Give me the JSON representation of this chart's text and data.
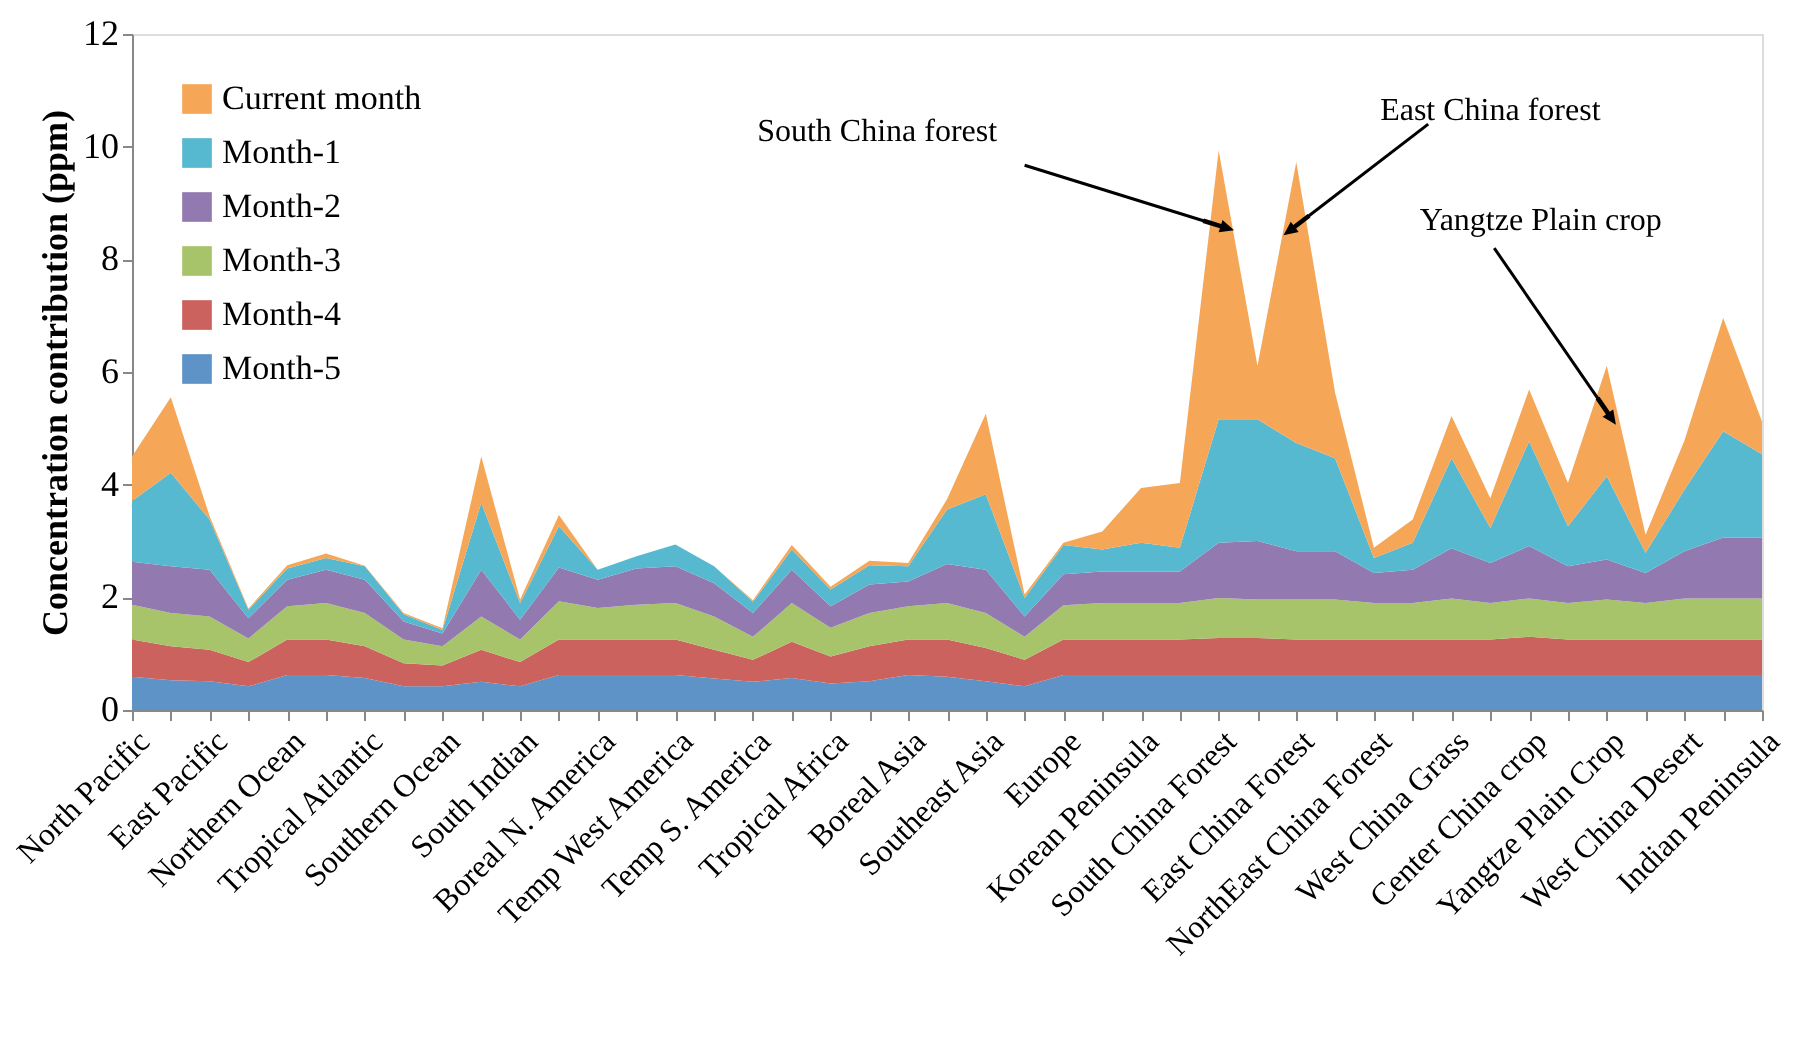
{
  "chart_data": {
    "type": "area",
    "stacked": true,
    "ylabel": "Concentration contribution (ppm)",
    "categories": [
      "North Pacific",
      null,
      "East Pacific",
      null,
      "Northern Ocean",
      null,
      "Tropical Atlantic",
      null,
      "Southern Ocean",
      null,
      "South Indian",
      null,
      "Boreal N. America",
      null,
      "Temp West America",
      null,
      "Temp S. America",
      null,
      "Tropical Africa",
      null,
      "Boreal Asia",
      null,
      "Southeast Asia",
      null,
      "Europe",
      null,
      "Korean Peninsula",
      null,
      "South China Forest",
      null,
      "East China Forest",
      null,
      "NorthEast China Forest",
      null,
      "West China Grass",
      null,
      "Center China crop",
      null,
      "Yangtze Plain Crop",
      null,
      "West China Desert",
      null,
      "Indian Peninsula"
    ],
    "ylim": [
      0,
      12
    ],
    "yticks": [
      0,
      2,
      4,
      6,
      8,
      10,
      12
    ],
    "grid": false,
    "legend": "top left",
    "series": [
      {
        "name": "Month-5",
        "color": "#5e93c8",
        "values": [
          0.59,
          0.53,
          0.51,
          0.42,
          0.62,
          0.62,
          0.57,
          0.42,
          0.42,
          0.5,
          0.42,
          0.62,
          0.62,
          0.62,
          0.62,
          0.56,
          0.5,
          0.57,
          0.47,
          0.51,
          0.62,
          0.59,
          0.51,
          0.42,
          0.62,
          0.62,
          0.62,
          0.62,
          0.62,
          0.62,
          0.62,
          0.62,
          0.62,
          0.62,
          0.62,
          0.62,
          0.62,
          0.62,
          0.62,
          0.62,
          0.62,
          0.62,
          0.62
        ]
      },
      {
        "name": "Month-4",
        "color": "#cc625e",
        "values": [
          0.66,
          0.6,
          0.56,
          0.43,
          0.63,
          0.63,
          0.56,
          0.41,
          0.37,
          0.57,
          0.43,
          0.63,
          0.63,
          0.63,
          0.63,
          0.51,
          0.39,
          0.64,
          0.48,
          0.62,
          0.63,
          0.66,
          0.59,
          0.47,
          0.63,
          0.63,
          0.63,
          0.63,
          0.66,
          0.66,
          0.63,
          0.63,
          0.63,
          0.63,
          0.63,
          0.63,
          0.68,
          0.63,
          0.63,
          0.63,
          0.63,
          0.63,
          0.63
        ]
      },
      {
        "name": "Month-3",
        "color": "#a8c46b",
        "values": [
          0.62,
          0.59,
          0.59,
          0.42,
          0.59,
          0.65,
          0.59,
          0.42,
          0.34,
          0.59,
          0.4,
          0.68,
          0.56,
          0.62,
          0.65,
          0.59,
          0.41,
          0.69,
          0.51,
          0.59,
          0.59,
          0.65,
          0.62,
          0.41,
          0.61,
          0.65,
          0.65,
          0.65,
          0.71,
          0.68,
          0.71,
          0.71,
          0.65,
          0.65,
          0.73,
          0.65,
          0.68,
          0.65,
          0.71,
          0.65,
          0.73,
          0.73,
          0.73
        ]
      },
      {
        "name": "Month-2",
        "color": "#9279b0",
        "values": [
          0.76,
          0.83,
          0.83,
          0.36,
          0.47,
          0.59,
          0.59,
          0.32,
          0.23,
          0.83,
          0.35,
          0.6,
          0.5,
          0.64,
          0.65,
          0.59,
          0.42,
          0.59,
          0.38,
          0.51,
          0.44,
          0.69,
          0.77,
          0.36,
          0.55,
          0.56,
          0.56,
          0.56,
          0.98,
          1.04,
          0.86,
          0.86,
          0.53,
          0.59,
          0.89,
          0.71,
          0.93,
          0.65,
          0.71,
          0.53,
          0.84,
          1.08,
          1.08
        ]
      },
      {
        "name": "Month-1",
        "color": "#57b9d0",
        "values": [
          1.08,
          1.66,
          0.89,
          0.15,
          0.2,
          0.21,
          0.24,
          0.13,
          0.06,
          1.19,
          0.3,
          0.73,
          0.18,
          0.22,
          0.39,
          0.3,
          0.2,
          0.36,
          0.3,
          0.34,
          0.27,
          0.97,
          1.34,
          0.33,
          0.52,
          0.39,
          0.51,
          0.42,
          2.19,
          2.16,
          1.92,
          1.65,
          0.27,
          0.48,
          1.6,
          0.62,
          1.86,
          0.71,
          1.48,
          0.36,
          1.09,
          1.89,
          1.48
        ]
      },
      {
        "name": "Current month",
        "color": "#f6a657",
        "values": [
          0.79,
          1.34,
          0.06,
          0.02,
          0.06,
          0.08,
          0.01,
          0.02,
          0.03,
          0.82,
          0.06,
          0.2,
          0,
          0,
          0,
          0,
          0.03,
          0.08,
          0.05,
          0.08,
          0.06,
          0.18,
          1.43,
          0.06,
          0.04,
          0.32,
          0.97,
          1.15,
          4.77,
          0.95,
          4.99,
          1.16,
          0.18,
          0.41,
          0.75,
          0.53,
          0.92,
          0.77,
          1.96,
          0.32,
          0.87,
          2.01,
          0.58
        ]
      }
    ],
    "annotations": [
      {
        "text": "South China forest",
        "x": "South China Forest",
        "y": 8.6
      },
      {
        "text": "East China forest",
        "x": "East China Forest",
        "y": 8.6
      },
      {
        "text": "Yangtze Plain crop",
        "x": "Yangtze Plain Crop",
        "y": 5.3
      }
    ]
  }
}
